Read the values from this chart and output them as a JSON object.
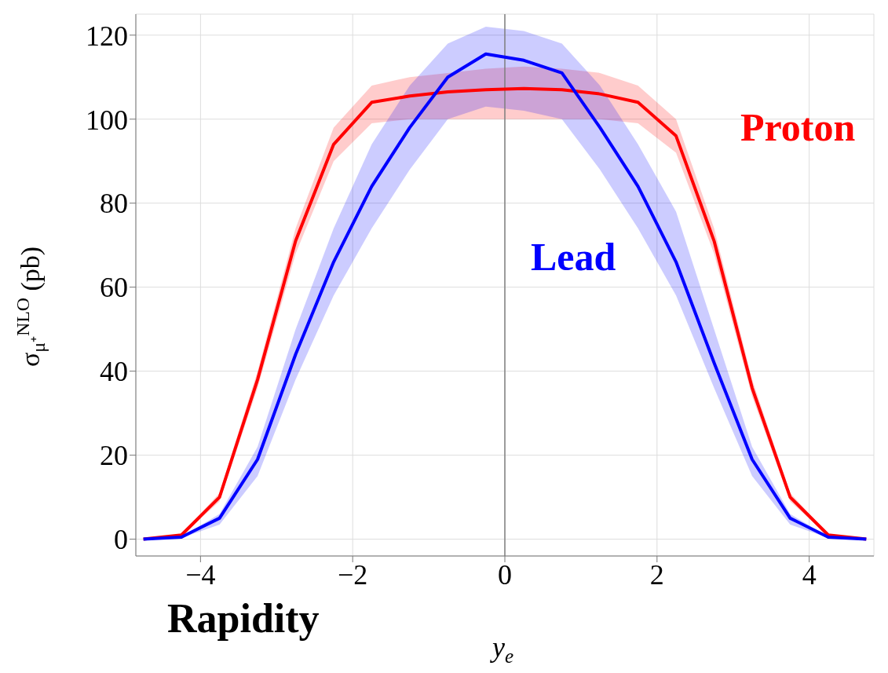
{
  "chart_data": {
    "type": "line",
    "xlabel": "y$_{e}$",
    "ylabel": "σ$_{μ⁺}$$^{NLO}$ (pb)",
    "annotations": [
      "Rapidity"
    ],
    "x": [
      -4.75,
      -4.25,
      -3.75,
      -3.25,
      -2.75,
      -2.25,
      -1.75,
      -1.25,
      -0.75,
      -0.25,
      0.25,
      0.75,
      1.25,
      1.75,
      2.25,
      2.75,
      3.25,
      3.75,
      4.25,
      4.75
    ],
    "series": [
      {
        "name": "Proton",
        "color": "#ff0000",
        "values": [
          0,
          1,
          10,
          38,
          71,
          94,
          104,
          105.5,
          106.5,
          107,
          107.3,
          107,
          106,
          104,
          96,
          71,
          36,
          10,
          1,
          0
        ],
        "lower": [
          0,
          0.8,
          9,
          36,
          68,
          90,
          99,
          100,
          100,
          100,
          100,
          100,
          100,
          99,
          92,
          68,
          34,
          9,
          0.8,
          0
        ],
        "upper": [
          0,
          1.2,
          11,
          40,
          74,
          98,
          108,
          110,
          111,
          112,
          112.5,
          112,
          111,
          108,
          100,
          74,
          38,
          11,
          1.2,
          0
        ]
      },
      {
        "name": "Lead",
        "color": "#0000ff",
        "values": [
          0,
          0.5,
          5,
          19,
          44,
          66,
          84,
          98,
          110,
          115.5,
          114,
          111,
          98,
          84,
          66,
          42,
          19,
          5,
          0.5,
          0
        ],
        "lower": [
          0,
          0.3,
          3.5,
          15,
          38,
          58,
          74,
          88,
          100,
          103,
          102,
          100,
          88,
          74,
          58,
          36,
          15,
          3.5,
          0.3,
          0
        ],
        "upper": [
          0,
          0.6,
          6,
          22,
          50,
          74,
          94,
          108,
          118,
          122,
          121,
          118,
          108,
          94,
          78,
          50,
          22,
          6,
          0.6,
          0
        ]
      }
    ],
    "xlim": [
      -4.85,
      4.85
    ],
    "ylim": [
      -4,
      125
    ],
    "xticks": [
      -4,
      -2,
      0,
      2,
      4
    ],
    "yticks": [
      0,
      20,
      40,
      60,
      80,
      100,
      120
    ],
    "ref_lines": [
      {
        "axis": "x",
        "value": 0,
        "color": "#808080"
      }
    ],
    "grid": true,
    "marker": "none",
    "line_style": "solid"
  }
}
